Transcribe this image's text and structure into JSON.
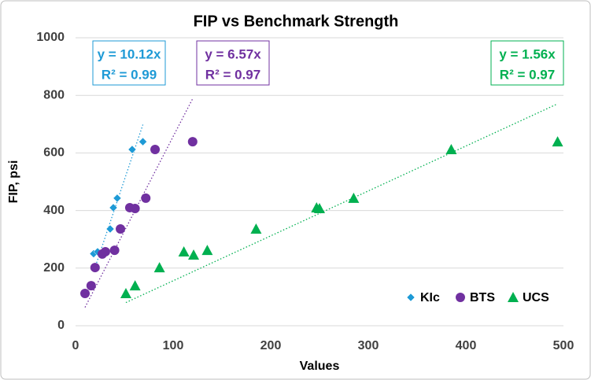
{
  "chart_data": {
    "type": "scatter",
    "title": "FIP vs Benchmark Strength",
    "x_label": "Values",
    "y_label": "FIP, psi",
    "xlim": [
      0,
      500
    ],
    "xticks": [
      0,
      100,
      200,
      300,
      400,
      500
    ],
    "ylim": [
      0,
      1000
    ],
    "yticks": [
      0,
      200,
      400,
      600,
      800,
      1000
    ],
    "grid": true,
    "legend": "bottom-right",
    "series": [
      {
        "name": "KIc",
        "color": "#1e9ad6",
        "marker": "diamond",
        "x": [
          18.5,
          22.6,
          35.5,
          38.7,
          42.7,
          58,
          69
        ],
        "values": [
          250,
          257,
          336,
          410,
          443,
          612,
          639
        ],
        "trendline": {
          "slope": 10.12,
          "equation": "y = 10.12x",
          "r2": "R² = 0.99"
        }
      },
      {
        "name": "BTS",
        "color": "#7030a0",
        "marker": "circle",
        "x": [
          9.7,
          16,
          20,
          27.4,
          30.6,
          40,
          46,
          55.6,
          61,
          72,
          81.5,
          120
        ],
        "values": [
          112,
          139,
          202,
          249,
          257,
          262,
          336,
          410,
          407,
          443,
          612,
          639
        ],
        "trendline": {
          "slope": 6.57,
          "equation": "y = 6.57x",
          "r2": "R² = 0.97"
        }
      },
      {
        "name": "UCS",
        "color": "#00b050",
        "marker": "triangle",
        "x": [
          51.6,
          61,
          86,
          111,
          121,
          135,
          185,
          247,
          250,
          285,
          385,
          494
        ],
        "values": [
          112,
          139,
          202,
          257,
          246,
          262,
          336,
          410,
          407,
          443,
          612,
          639
        ],
        "trendline": {
          "slope": 1.56,
          "equation": "y = 1.56x",
          "r2": "R² = 0.97"
        }
      }
    ]
  }
}
